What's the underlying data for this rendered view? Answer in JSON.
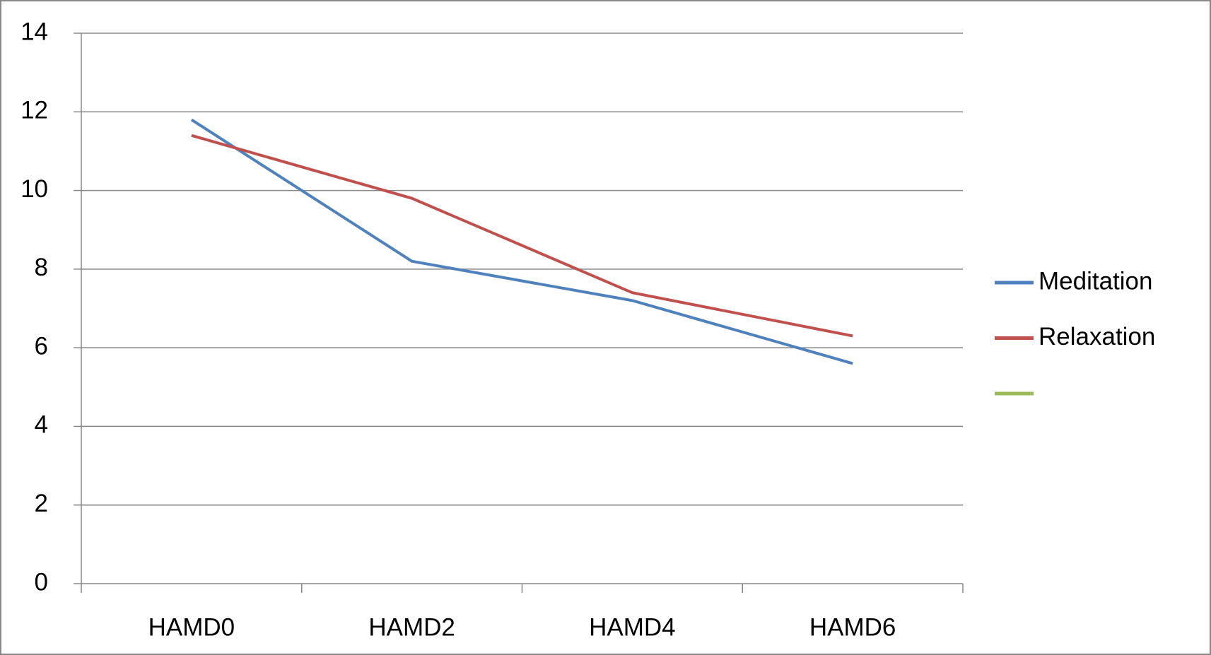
{
  "chart_data": {
    "type": "line",
    "categories": [
      "HAMD0",
      "HAMD2",
      "HAMD4",
      "HAMD6"
    ],
    "series": [
      {
        "name": "Meditation",
        "color": "#4f81bd",
        "values": [
          11.8,
          8.2,
          7.2,
          5.6
        ]
      },
      {
        "name": "Relaxation",
        "color": "#c0504d",
        "values": [
          11.4,
          9.8,
          7.4,
          6.3
        ]
      },
      {
        "color": "#9bbb59",
        "values": [
          null,
          null,
          null,
          null
        ]
      }
    ],
    "ylim": [
      0,
      14
    ],
    "yticks": [
      0,
      2,
      4,
      6,
      8,
      10,
      12,
      14
    ],
    "grid": true,
    "legend": "right"
  }
}
